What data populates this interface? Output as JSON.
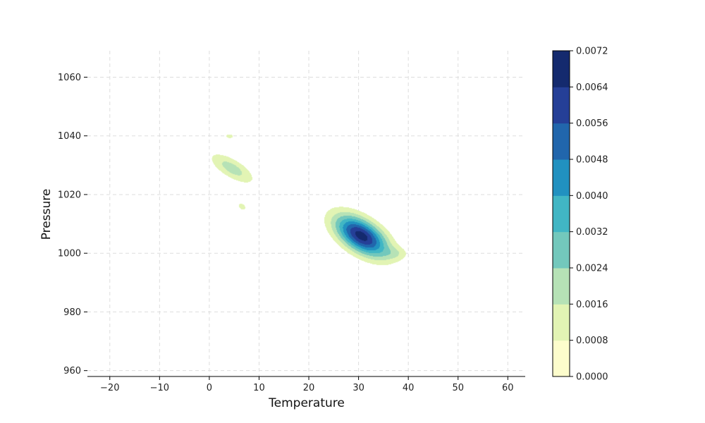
{
  "chart_data": {
    "type": "contour",
    "title": "",
    "xlabel": "Temperature",
    "ylabel": "Pressure",
    "xlim": [
      -24.5,
      63.5
    ],
    "ylim": [
      958,
      1069
    ],
    "xticks": [
      -20,
      -10,
      0,
      10,
      20,
      30,
      40,
      50,
      60
    ],
    "yticks": [
      960,
      980,
      1000,
      1020,
      1040,
      1060
    ],
    "xtick_labels": [
      "−20",
      "−10",
      "0",
      "10",
      "20",
      "30",
      "40",
      "50",
      "60"
    ],
    "ytick_labels": [
      "960",
      "980",
      "1000",
      "1020",
      "1040",
      "1060"
    ],
    "grid": true,
    "colormap": "YlGnBu",
    "levels": [
      0.0,
      0.0008,
      0.0016,
      0.0024,
      0.0032,
      0.004,
      0.0048,
      0.0056,
      0.0064,
      0.0072
    ],
    "colorbar_labels": [
      "0.0000",
      "0.0008",
      "0.0016",
      "0.0024",
      "0.0032",
      "0.0040",
      "0.0048",
      "0.0056",
      "0.0064",
      "0.0072"
    ],
    "level_colors": [
      "#fdfdcc",
      "#e2f4b4",
      "#b6e2b6",
      "#73c8bc",
      "#41b6c4",
      "#2191c0",
      "#2166ac",
      "#253f97",
      "#142a6e"
    ],
    "density_components": [
      {
        "cx": 30.5,
        "cy": 1006,
        "sx": 3.6,
        "sy": 4.8,
        "rho": -0.55,
        "peak": 0.0068
      },
      {
        "cx": 4.5,
        "cy": 1029,
        "sx": 3.0,
        "sy": 3.5,
        "rho": -0.7,
        "peak": 0.002
      },
      {
        "cx": 4.0,
        "cy": 1040,
        "sx": 1.0,
        "sy": 0.9,
        "rho": 0.0,
        "peak": 0.001
      },
      {
        "cx": 6.5,
        "cy": 1016,
        "sx": 0.8,
        "sy": 1.2,
        "rho": -0.3,
        "peak": 0.0011
      },
      {
        "cx": 37.5,
        "cy": 1000,
        "sx": 1.8,
        "sy": 1.6,
        "rho": 0.0,
        "peak": 0.0009
      }
    ]
  }
}
